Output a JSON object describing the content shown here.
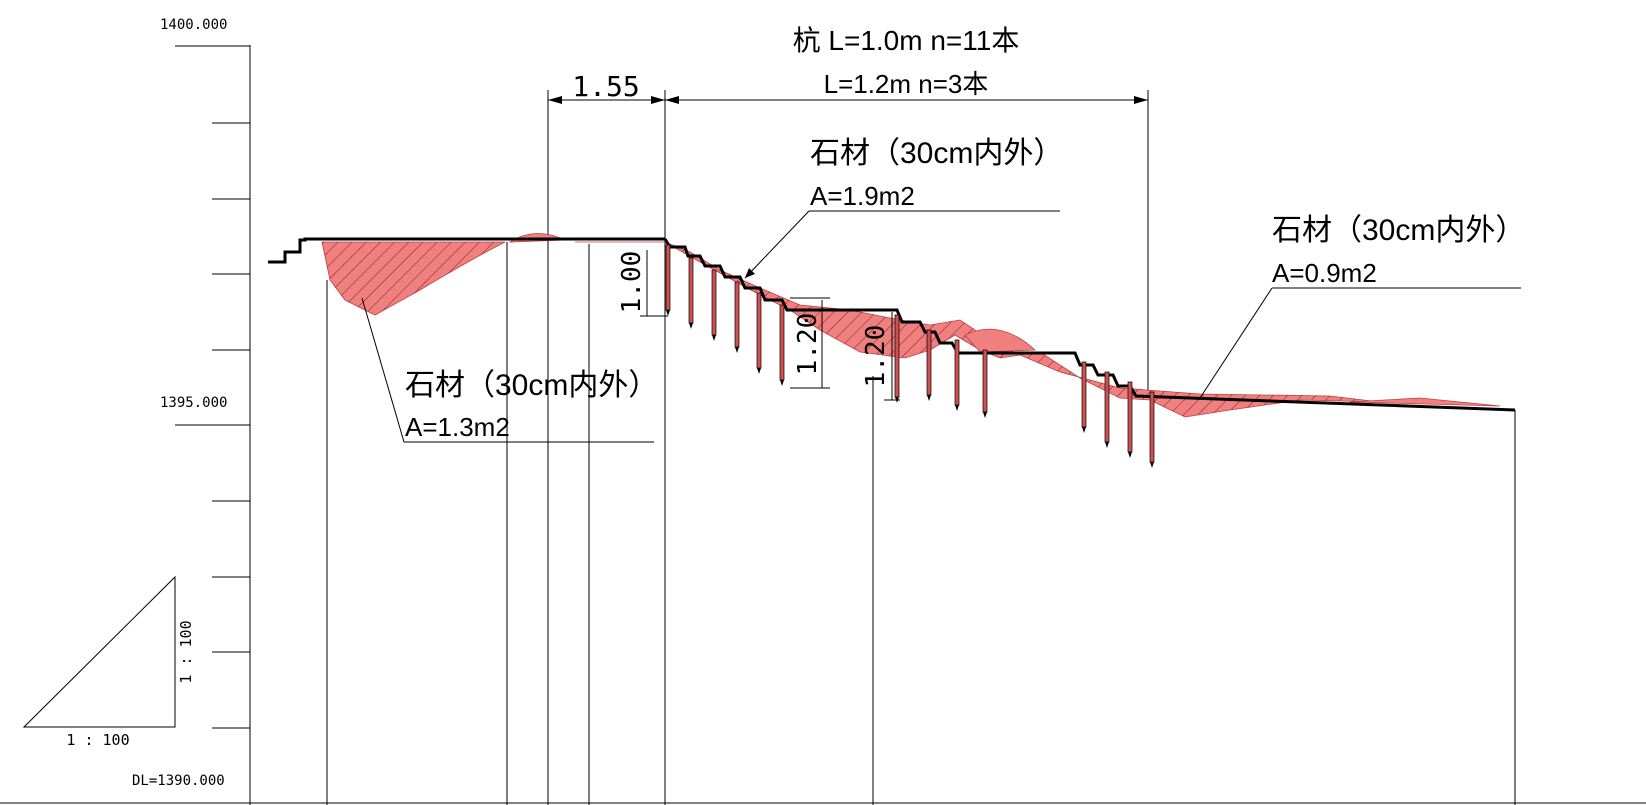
{
  "elevation_axis": {
    "top": "1400.000",
    "middle": "1395.000",
    "datum": "DL=1390.000"
  },
  "dimensions": {
    "span_left": "1.55",
    "pile_note_line1": "杭 L=1.0m n=11本",
    "pile_note_line2": "L=1.2m n=3本",
    "dim_a": "1.00",
    "dim_b": "1.20",
    "dim_c": "1.20"
  },
  "callouts": {
    "stone_1": {
      "title": "石材（30cm内外）",
      "area": "A=1.9m2"
    },
    "stone_2": {
      "title": "石材（30cm内外）",
      "area": "A=0.9m2"
    },
    "stone_3": {
      "title": "石材（30cm内外）",
      "area": "A=1.3m2"
    }
  },
  "scale": {
    "horizontal": "1 : 100",
    "vertical": "1 : 100"
  },
  "colors": {
    "fill": "#f08080",
    "line": "#000000"
  }
}
